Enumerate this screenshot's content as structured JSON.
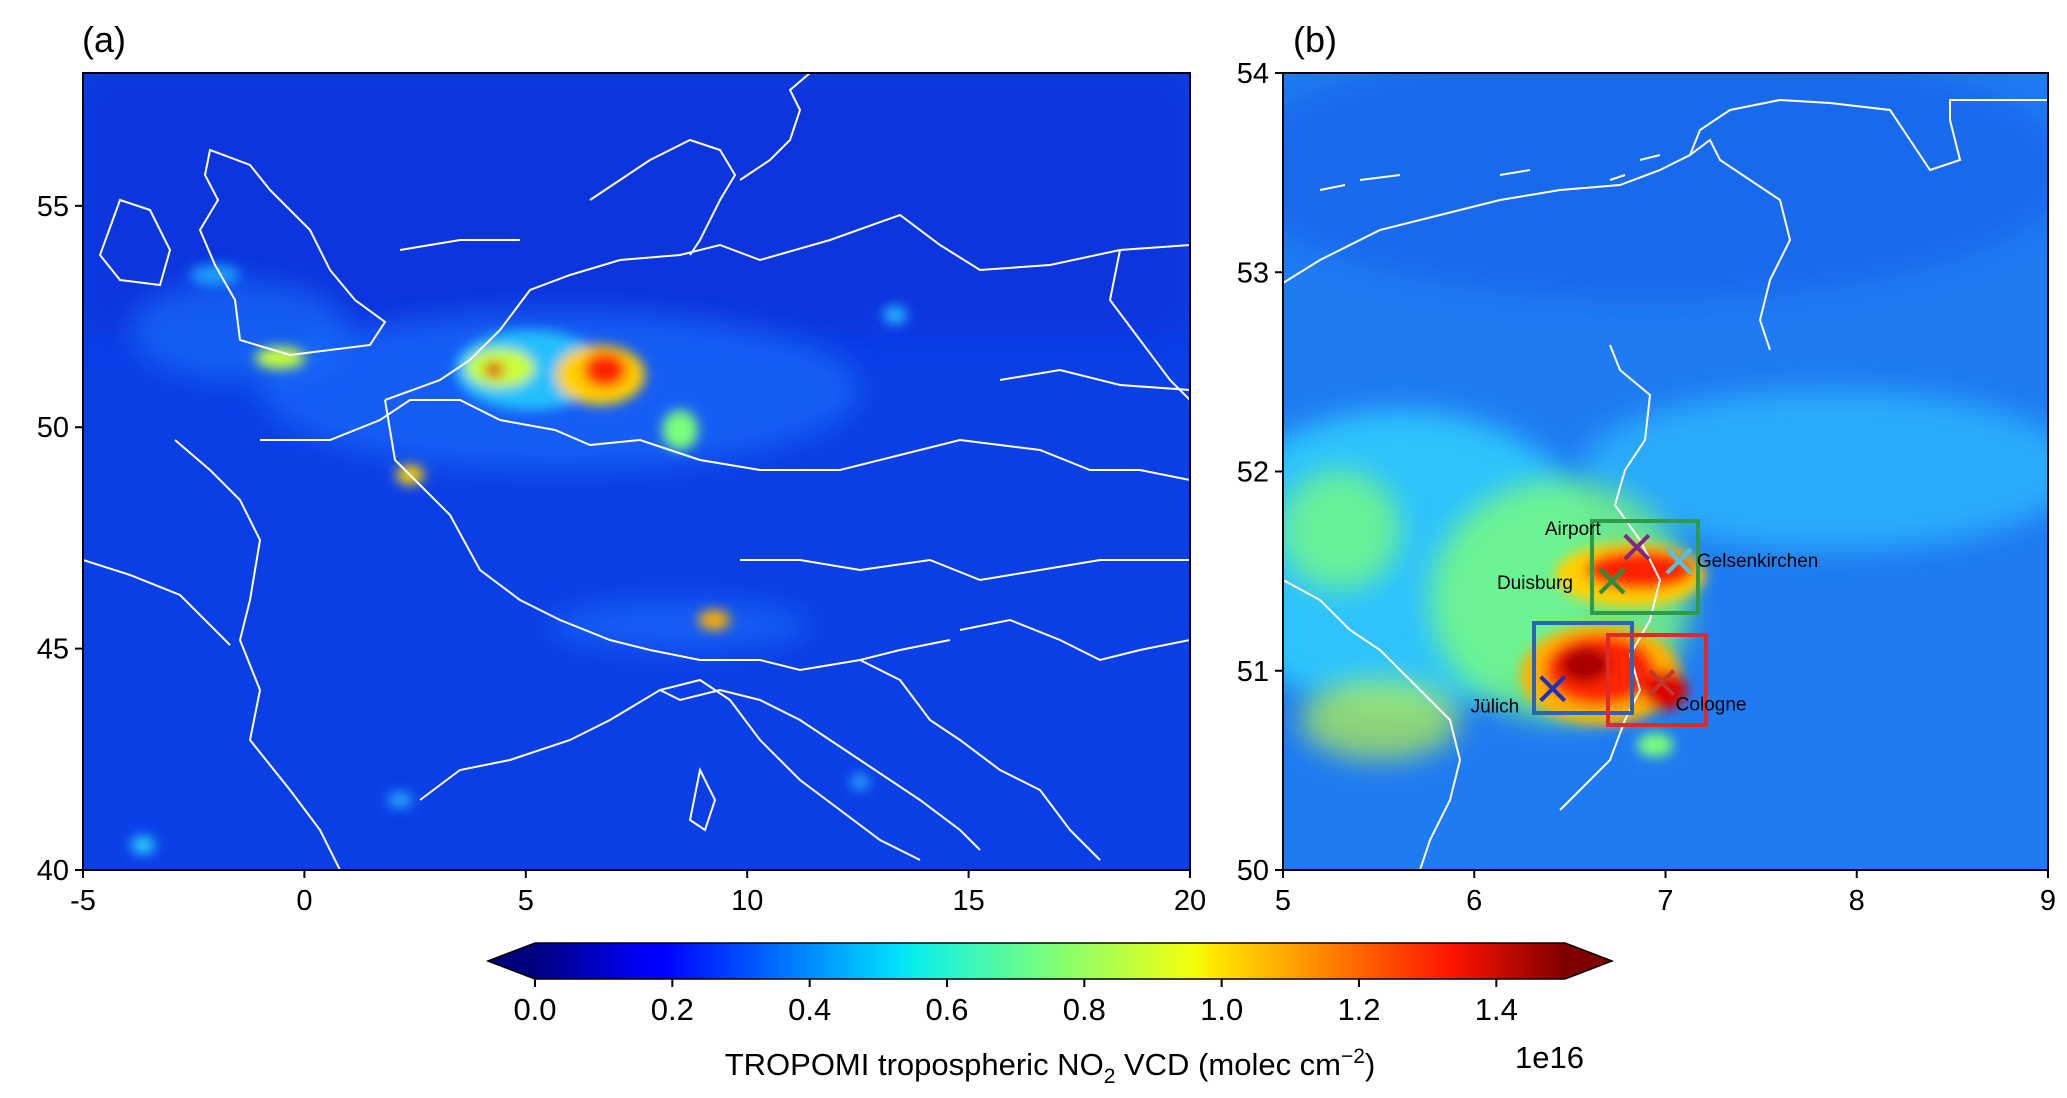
{
  "panels": {
    "a": {
      "label": "(a)",
      "xticks": [
        "-5",
        "0",
        "5",
        "10",
        "15",
        "20"
      ],
      "yticks": [
        "40",
        "45",
        "50",
        "55"
      ]
    },
    "b": {
      "label": "(b)",
      "xticks": [
        "5",
        "6",
        "7",
        "8",
        "9"
      ],
      "yticks": [
        "50",
        "51",
        "52",
        "53",
        "54"
      ],
      "sites": [
        {
          "name": "Airport",
          "color": "#7b2a8a"
        },
        {
          "name": "Duisburg",
          "color": "#2e8b3e"
        },
        {
          "name": "Gelsenkirchen",
          "color": "#4fc3e8"
        },
        {
          "name": "Jülich",
          "color": "#1f2fbf"
        },
        {
          "name": "Cologne",
          "color": "#c0392b"
        }
      ],
      "box_colors": [
        "#2e9a4a",
        "#2a64b5",
        "#e02a2a"
      ]
    }
  },
  "colorbar": {
    "ticks": [
      "0.0",
      "0.2",
      "0.4",
      "0.6",
      "0.8",
      "1.0",
      "1.2",
      "1.4"
    ],
    "label_prefix": "TROPOMI tropospheric NO",
    "label_sub": "2",
    "label_suffix": " VCD (molec cm",
    "label_sup": "−2",
    "label_close": ")",
    "multiplier": "1e16",
    "colormap": "jet"
  },
  "chart_data": [
    {
      "type": "heatmap",
      "title": "(a)",
      "xlabel": "",
      "ylabel": "",
      "xlim": [
        -5,
        20
      ],
      "ylim": [
        40,
        58
      ],
      "xticks": [
        -5,
        0,
        5,
        10,
        15,
        20
      ],
      "yticks": [
        40,
        45,
        50,
        55
      ],
      "variable": "TROPOMI tropospheric NO2 VCD",
      "units": "molec cm^-2",
      "colorbar_range": [
        0,
        1.5e+16
      ],
      "hotspots": [
        {
          "lon": 6.9,
          "lat": 51.4,
          "value": 1.4e+16
        },
        {
          "lon": 4.4,
          "lat": 51.2,
          "value": 1.3e+16
        },
        {
          "lon": -0.2,
          "lat": 51.5,
          "value": 9000000000000000.0
        },
        {
          "lon": 2.4,
          "lat": 48.9,
          "value": 9000000000000000.0
        },
        {
          "lon": 9.2,
          "lat": 45.5,
          "value": 1e+16
        },
        {
          "lon": 8.6,
          "lat": 49.5,
          "value": 6000000000000000.0
        },
        {
          "lon": -3.7,
          "lat": 40.4,
          "value": 6000000000000000.0
        },
        {
          "lon": 13.4,
          "lat": 52.5,
          "value": 4000000000000000.0
        }
      ]
    },
    {
      "type": "heatmap",
      "title": "(b)",
      "xlabel": "",
      "ylabel": "",
      "xlim": [
        5,
        9
      ],
      "ylim": [
        50,
        54
      ],
      "xticks": [
        5,
        6,
        7,
        8,
        9
      ],
      "yticks": [
        50,
        51,
        52,
        53,
        54
      ],
      "variable": "TROPOMI tropospheric NO2 VCD",
      "units": "molec cm^-2",
      "colorbar_range": [
        0,
        1.5e+16
      ],
      "sites": [
        {
          "name": "Airport",
          "lon": 6.85,
          "lat": 51.62
        },
        {
          "name": "Duisburg",
          "lon": 6.72,
          "lat": 51.45
        },
        {
          "name": "Gelsenkirchen",
          "lon": 7.07,
          "lat": 51.55
        },
        {
          "name": "Jülich",
          "lon": 6.41,
          "lat": 50.91
        },
        {
          "name": "Cologne",
          "lon": 6.98,
          "lat": 50.94
        }
      ],
      "boxes": [
        {
          "lon": [
            6.63,
            7.13
          ],
          "lat": [
            51.29,
            51.75
          ]
        },
        {
          "lon": [
            6.27,
            6.78
          ],
          "lat": [
            50.79,
            51.24
          ]
        },
        {
          "lon": [
            6.69,
            7.2
          ],
          "lat": [
            50.74,
            51.18
          ]
        }
      ]
    }
  ]
}
